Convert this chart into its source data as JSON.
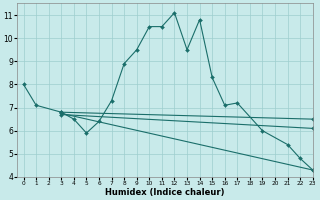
{
  "xlabel": "Humidex (Indice chaleur)",
  "bg_color": "#c8eaea",
  "grid_color": "#9ecece",
  "line_color": "#1a6e6a",
  "xlim": [
    -0.5,
    23
  ],
  "ylim": [
    4,
    11.5
  ],
  "xticks": [
    0,
    1,
    2,
    3,
    4,
    5,
    6,
    7,
    8,
    9,
    10,
    11,
    12,
    13,
    14,
    15,
    16,
    17,
    18,
    19,
    20,
    21,
    22,
    23
  ],
  "yticks": [
    4,
    5,
    6,
    7,
    8,
    9,
    10,
    11
  ],
  "line_main": {
    "x": [
      0,
      1,
      3,
      4,
      5,
      6,
      7,
      8,
      9,
      10,
      11,
      12,
      13,
      14,
      15,
      16,
      17,
      19,
      21,
      22,
      23
    ],
    "y": [
      8.0,
      7.1,
      6.8,
      6.5,
      5.9,
      6.4,
      7.3,
      8.9,
      9.5,
      10.5,
      10.5,
      11.1,
      9.5,
      10.8,
      8.3,
      7.1,
      7.2,
      6.0,
      5.4,
      4.8,
      4.3
    ]
  },
  "line_reg1": {
    "x": [
      3,
      23
    ],
    "y": [
      6.8,
      6.5
    ]
  },
  "line_reg2": {
    "x": [
      3,
      23
    ],
    "y": [
      6.7,
      6.1
    ]
  },
  "line_reg3": {
    "x": [
      3,
      23
    ],
    "y": [
      6.75,
      4.3
    ]
  },
  "marker": "D",
  "markersize": 2.0,
  "linewidth": 0.8
}
